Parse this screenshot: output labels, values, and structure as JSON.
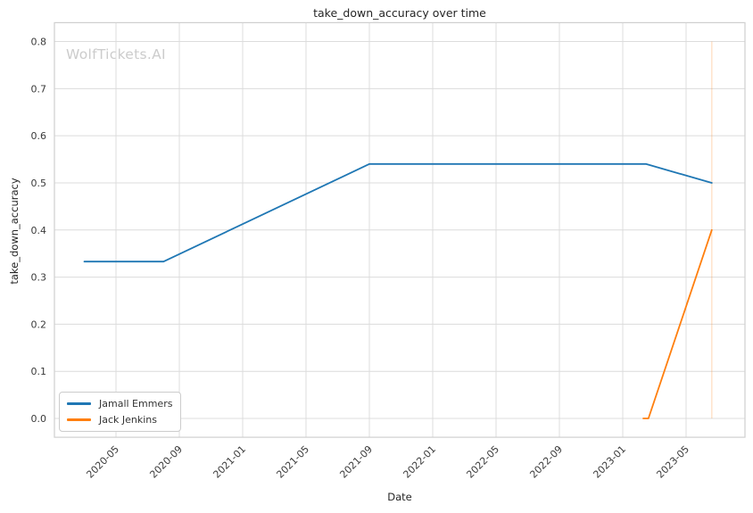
{
  "watermark": "WolfTickets.AI",
  "colors": {
    "grid": "#dcdcdc",
    "frame": "#cfcfcf",
    "tick_text": "#3a3a3a",
    "label_text": "#262626",
    "watermark": "#cccccc",
    "background": "#ffffff"
  },
  "chart_data": {
    "type": "line",
    "title": "take_down_accuracy over time",
    "xlabel": "Date",
    "ylabel": "take_down_accuracy",
    "grid": true,
    "legend_position": "lower left",
    "ylim": [
      -0.04,
      0.84
    ],
    "y_ticks": [
      0.0,
      0.1,
      0.2,
      0.3,
      0.4,
      0.5,
      0.6,
      0.7,
      0.8
    ],
    "y_tick_labels": [
      "0.0",
      "0.1",
      "0.2",
      "0.3",
      "0.4",
      "0.5",
      "0.6",
      "0.7",
      "0.8"
    ],
    "x_tick_labels": [
      "2020-05",
      "2020-09",
      "2021-01",
      "2021-05",
      "2021-09",
      "2022-01",
      "2022-05",
      "2022-09",
      "2023-01",
      "2023-05"
    ],
    "series": [
      {
        "name": "Jamall Emmers",
        "color": "#1f77b4",
        "points": [
          {
            "date": "2020-03",
            "value": 0.333
          },
          {
            "date": "2020-08",
            "value": 0.333
          },
          {
            "date": "2021-09",
            "value": 0.54
          },
          {
            "date": "2023-02-15",
            "value": 0.54
          },
          {
            "date": "2023-06-20",
            "value": 0.5
          }
        ]
      },
      {
        "name": "Jack Jenkins",
        "color": "#ff7f0e",
        "points": [
          {
            "date": "2023-02-10",
            "value": 0.0
          },
          {
            "date": "2023-02-20",
            "value": 0.0
          },
          {
            "date": "2023-06-20",
            "value": 0.4
          }
        ]
      }
    ],
    "marker_line": {
      "date": "2023-06-20",
      "from": 0.0,
      "to": 0.8,
      "color": "#ff7f0e",
      "opacity": 0.25
    }
  }
}
